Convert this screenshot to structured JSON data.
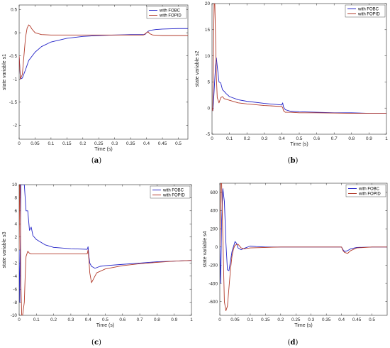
{
  "colors": {
    "fobc": "#2323c8",
    "fopid": "#b23a2a",
    "axis": "#262626",
    "background": "#ffffff"
  },
  "chart_data": [
    {
      "type": "line",
      "caption_letter": "a",
      "xlabel": "Time (s)",
      "ylabel": "state variable s1",
      "xlim": [
        0,
        0.53
      ],
      "ylim": [
        -2.3,
        0.6
      ],
      "xticks": [
        0,
        0.05,
        0.1,
        0.15,
        0.2,
        0.25,
        0.3,
        0.35,
        0.4,
        0.45,
        0.5
      ],
      "xtick_labels": [
        "0",
        "0.05",
        "0.1",
        "0.15",
        "0.2",
        "0.25",
        "0.3",
        "0.35",
        "0.4",
        "0.45",
        "0.5"
      ],
      "yticks": [
        -2,
        -1.5,
        -1,
        -0.5,
        0,
        0.5
      ],
      "ytick_labels": [
        "-2",
        "-1.5",
        "-1",
        "-0.5",
        "0",
        "0.5"
      ],
      "legend": {
        "position": "top-right"
      },
      "series": [
        {
          "name": "with FOBC",
          "color": "#2323c8",
          "x": [
            0,
            0.004,
            0.01,
            0.02,
            0.03,
            0.05,
            0.07,
            0.1,
            0.15,
            0.2,
            0.25,
            0.3,
            0.35,
            0.395,
            0.4,
            0.405,
            0.41,
            0.43,
            0.45,
            0.5,
            0.53
          ],
          "y": [
            -0.5,
            -1.0,
            -0.98,
            -0.8,
            -0.6,
            -0.42,
            -0.3,
            -0.2,
            -0.12,
            -0.08,
            -0.06,
            -0.05,
            -0.04,
            -0.04,
            0.0,
            0.03,
            0.05,
            0.07,
            0.08,
            0.09,
            0.09
          ]
        },
        {
          "name": "with FOPID",
          "color": "#b23a2a",
          "x": [
            0,
            0.004,
            0.01,
            0.015,
            0.02,
            0.025,
            0.03,
            0.035,
            0.04,
            0.05,
            0.07,
            0.1,
            0.15,
            0.2,
            0.3,
            0.39,
            0.4,
            0.405,
            0.41,
            0.42,
            0.45,
            0.5,
            0.53
          ],
          "y": [
            -0.5,
            -1.0,
            -0.9,
            -0.5,
            -0.1,
            0.1,
            0.17,
            0.14,
            0.08,
            0.0,
            -0.04,
            -0.05,
            -0.05,
            -0.05,
            -0.05,
            -0.05,
            0.0,
            0.02,
            -0.02,
            -0.05,
            -0.06,
            -0.06,
            -0.06
          ]
        }
      ]
    },
    {
      "type": "line",
      "caption_letter": "b",
      "xlabel": "Time (s)",
      "ylabel": "state variable s2",
      "xlim": [
        0,
        1
      ],
      "ylim": [
        -5,
        20
      ],
      "xticks": [
        0,
        0.1,
        0.2,
        0.3,
        0.4,
        0.5,
        0.6,
        0.7,
        0.8,
        0.9,
        1
      ],
      "xtick_labels": [
        "0",
        "0.1",
        "0.2",
        "0.3",
        "0.4",
        "0.5",
        "0.6",
        "0.7",
        "0.8",
        "0.9",
        "1"
      ],
      "yticks": [
        -5,
        0,
        5,
        10,
        15,
        20
      ],
      "ytick_labels": [
        "-5",
        "0",
        "5",
        "10",
        "15",
        "20"
      ],
      "legend": {
        "position": "top-right"
      },
      "series": [
        {
          "name": "with FOBC",
          "color": "#2323c8",
          "x": [
            0,
            0.005,
            0.01,
            0.02,
            0.025,
            0.03,
            0.04,
            0.05,
            0.06,
            0.07,
            0.08,
            0.1,
            0.15,
            0.2,
            0.3,
            0.4,
            0.405,
            0.41,
            0.42,
            0.45,
            0.5,
            0.6,
            0.7,
            0.8,
            0.9,
            1
          ],
          "y": [
            0,
            -0.5,
            2,
            8,
            9.6,
            8,
            5,
            4.8,
            3.5,
            3.2,
            2.8,
            2.2,
            1.6,
            1.3,
            0.9,
            0.6,
            1.0,
            0.2,
            -0.3,
            -0.6,
            -0.7,
            -0.8,
            -0.9,
            -0.9,
            -1.0,
            -1.0
          ]
        },
        {
          "name": "with FOPID",
          "color": "#b23a2a",
          "x": [
            0,
            0.004,
            0.008,
            0.012,
            0.016,
            0.02,
            0.025,
            0.03,
            0.04,
            0.05,
            0.06,
            0.07,
            0.1,
            0.15,
            0.2,
            0.3,
            0.4,
            0.405,
            0.41,
            0.42,
            0.45,
            0.5,
            0.6,
            0.8,
            1
          ],
          "y": [
            0,
            -0.5,
            10,
            20,
            20,
            14,
            6,
            2,
            1.0,
            2.0,
            2.2,
            1.8,
            1.5,
            1.0,
            0.8,
            0.5,
            0.3,
            0.1,
            -0.5,
            -0.8,
            -0.8,
            -0.9,
            -0.9,
            -1.0,
            -1.0
          ]
        }
      ]
    },
    {
      "type": "line",
      "caption_letter": "c",
      "xlabel": "Time (s)",
      "ylabel": "state variable s3",
      "xlim": [
        0,
        1
      ],
      "ylim": [
        -10,
        10
      ],
      "xticks": [
        0,
        0.1,
        0.2,
        0.3,
        0.4,
        0.5,
        0.6,
        0.7,
        0.8,
        0.9,
        1
      ],
      "xtick_labels": [
        "0",
        "0.1",
        "0.2",
        "0.3",
        "0.4",
        "0.5",
        "0.6",
        "0.7",
        "0.8",
        "0.9",
        "1"
      ],
      "yticks": [
        -10,
        -8,
        -6,
        -4,
        -2,
        0,
        2,
        4,
        6,
        8,
        10
      ],
      "ytick_labels": [
        "-10",
        "-8",
        "-6",
        "-4",
        "-2",
        "0",
        "2",
        "4",
        "6",
        "8",
        "10"
      ],
      "legend": {
        "position": "top-right"
      },
      "series": [
        {
          "name": "with FOBC",
          "color": "#2323c8",
          "x": [
            0,
            0.004,
            0.01,
            0.02,
            0.03,
            0.04,
            0.05,
            0.06,
            0.07,
            0.08,
            0.1,
            0.15,
            0.2,
            0.3,
            0.395,
            0.4,
            0.405,
            0.41,
            0.42,
            0.44,
            0.47,
            0.5,
            0.6,
            0.7,
            0.8,
            0.9,
            1
          ],
          "y": [
            0,
            -8,
            10,
            10,
            10,
            6,
            6,
            3,
            3.5,
            2.2,
            1.6,
            0.8,
            0.4,
            0.2,
            0.1,
            0.5,
            -1.0,
            -2.0,
            -2.5,
            -2.8,
            -2.5,
            -2.4,
            -2.2,
            -2.0,
            -1.8,
            -1.7,
            -1.6
          ]
        },
        {
          "name": "with FOPID",
          "color": "#b23a2a",
          "x": [
            0,
            0.003,
            0.006,
            0.01,
            0.015,
            0.02,
            0.03,
            0.035,
            0.04,
            0.05,
            0.06,
            0.07,
            0.08,
            0.1,
            0.2,
            0.3,
            0.395,
            0.4,
            0.405,
            0.41,
            0.42,
            0.43,
            0.45,
            0.5,
            0.6,
            0.7,
            0.8,
            0.9,
            1
          ],
          "y": [
            0,
            10,
            10,
            -5,
            -10,
            -10,
            -8,
            -4,
            -1,
            -0.2,
            -0.5,
            -0.6,
            -0.6,
            -0.6,
            -0.6,
            -0.6,
            -0.6,
            0.0,
            -1.5,
            -3.5,
            -5.0,
            -4.5,
            -3.5,
            -2.9,
            -2.4,
            -2.1,
            -1.9,
            -1.7,
            -1.6
          ]
        }
      ]
    },
    {
      "type": "line",
      "caption_letter": "d",
      "xlabel": "Time (s)",
      "ylabel": "state variable s4",
      "xlim": [
        0,
        0.55
      ],
      "ylim": [
        -750,
        700
      ],
      "xticks": [
        0,
        0.05,
        0.1,
        0.15,
        0.2,
        0.25,
        0.3,
        0.35,
        0.4,
        0.45,
        0.5
      ],
      "xtick_labels": [
        "0",
        "0.05",
        "0.1",
        "0.15",
        "0.2",
        "0.25",
        "0.3",
        "0.35",
        "0.4",
        "0.45",
        "0.5"
      ],
      "yticks": [
        -600,
        -400,
        -200,
        0,
        200,
        400,
        600
      ],
      "ytick_labels": [
        "-600",
        "-400",
        "-200",
        "0",
        "200",
        "400",
        "600"
      ],
      "legend": {
        "position": "top-right"
      },
      "series": [
        {
          "name": "with FOBC",
          "color": "#2323c8",
          "x": [
            0,
            0.003,
            0.006,
            0.01,
            0.015,
            0.02,
            0.025,
            0.03,
            0.04,
            0.05,
            0.055,
            0.06,
            0.07,
            0.08,
            0.1,
            0.12,
            0.15,
            0.2,
            0.3,
            0.4,
            0.405,
            0.41,
            0.42,
            0.43,
            0.45,
            0.5,
            0.55
          ],
          "y": [
            0,
            -400,
            300,
            640,
            500,
            50,
            -250,
            -260,
            -50,
            60,
            40,
            -10,
            -30,
            -15,
            10,
            5,
            0,
            0,
            0,
            0,
            -30,
            -50,
            -40,
            -20,
            -5,
            0,
            0
          ]
        },
        {
          "name": "with FOPID",
          "color": "#b23a2a",
          "x": [
            0,
            0.003,
            0.006,
            0.01,
            0.015,
            0.02,
            0.025,
            0.03,
            0.035,
            0.04,
            0.045,
            0.05,
            0.06,
            0.07,
            0.08,
            0.1,
            0.15,
            0.2,
            0.3,
            0.4,
            0.405,
            0.41,
            0.42,
            0.43,
            0.45,
            0.5,
            0.55
          ],
          "y": [
            0,
            700,
            700,
            100,
            -600,
            -700,
            -650,
            -450,
            -250,
            -100,
            -20,
            20,
            30,
            -10,
            -20,
            -10,
            -5,
            0,
            0,
            0,
            -40,
            -60,
            -70,
            -40,
            -10,
            0,
            0
          ]
        }
      ]
    }
  ]
}
